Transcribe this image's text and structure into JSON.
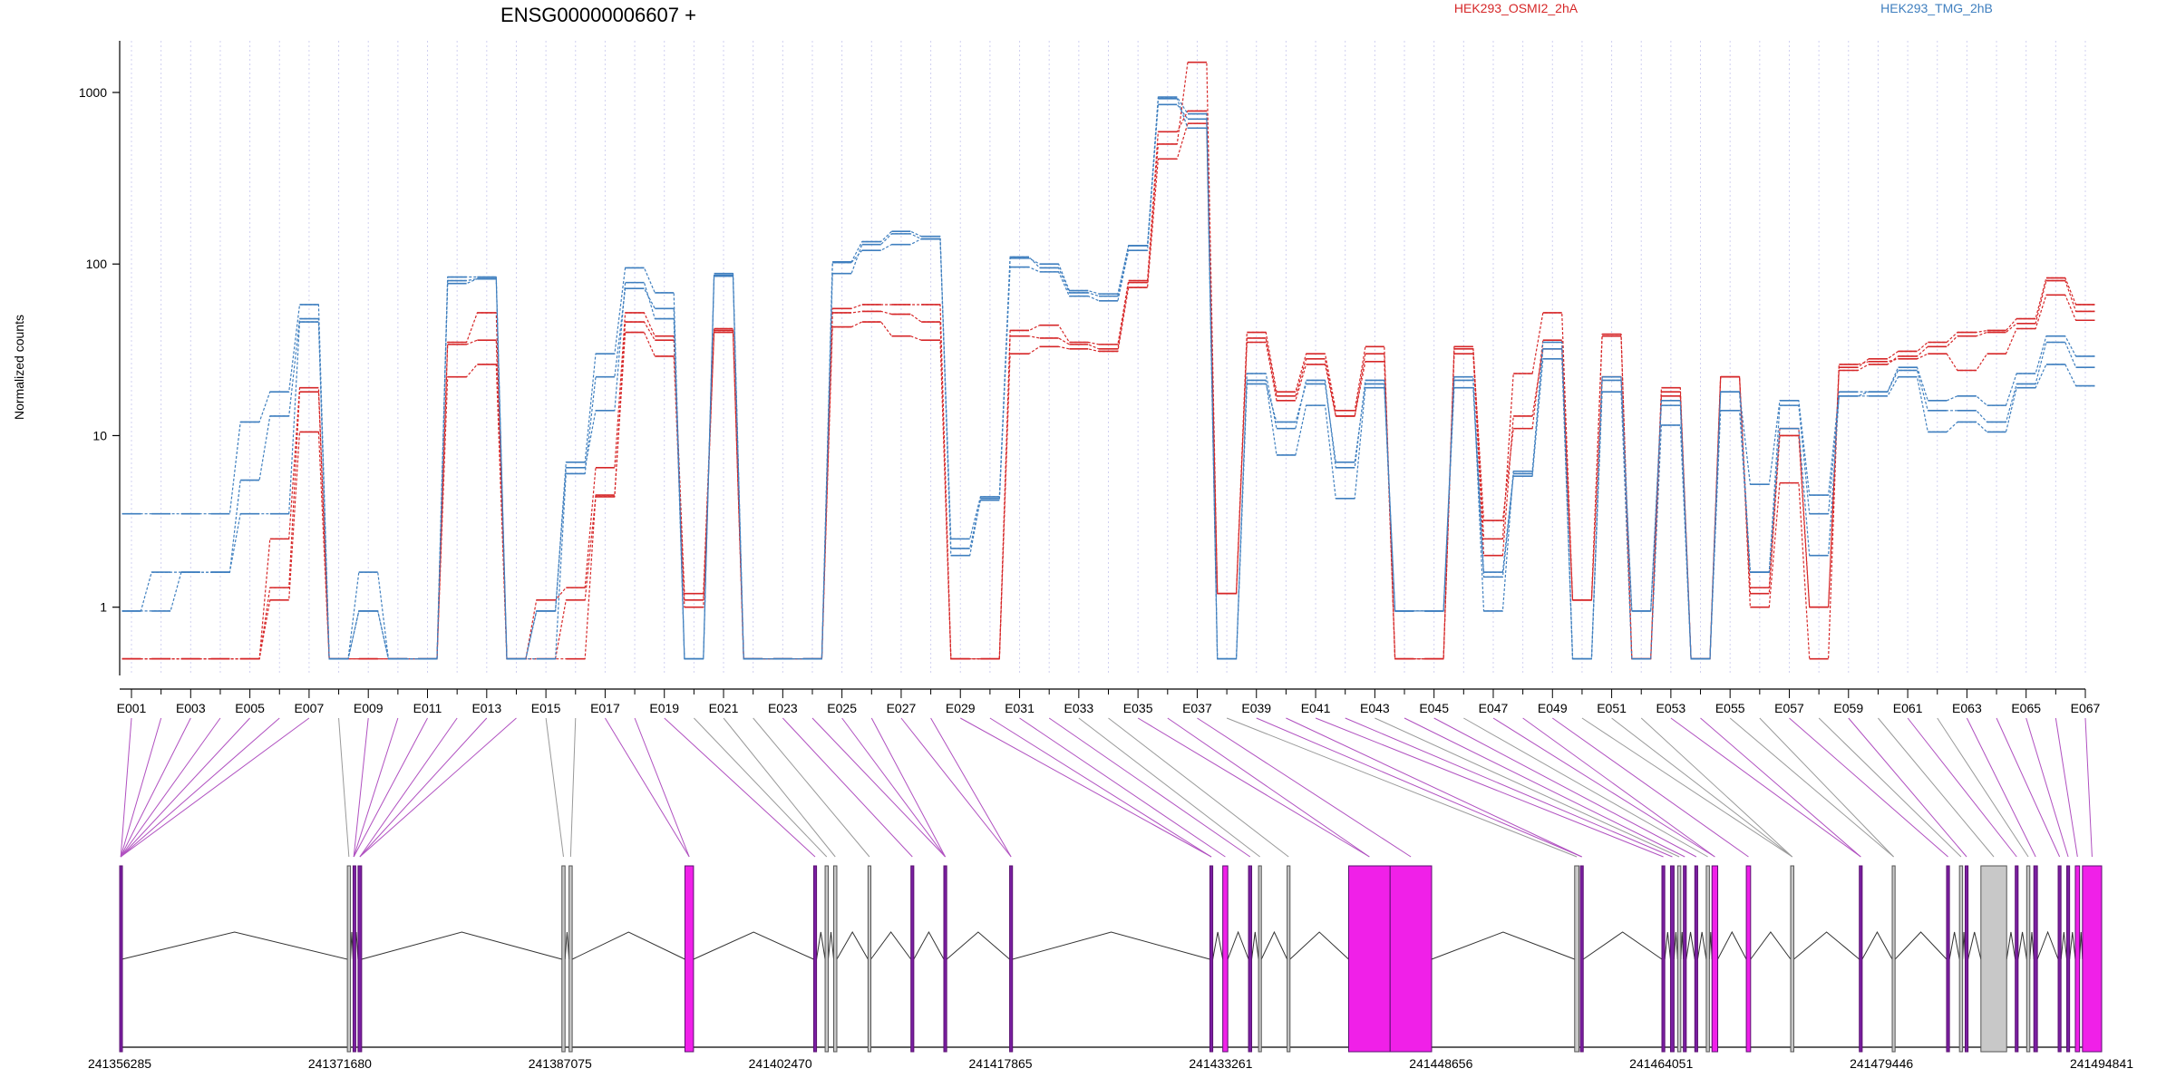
{
  "chart_data": {
    "type": "line",
    "title": "ENSG00000006607 +",
    "xlabel": "",
    "ylabel": "Normalized counts",
    "y_scale": "log",
    "ylim": [
      0.4,
      2000
    ],
    "y_ticks": [
      1,
      10,
      100,
      1000
    ],
    "y_tick_labels": [
      "1",
      "10",
      "100",
      "1000"
    ],
    "legend_placement": "top-right",
    "grid": "vertical dotted lines at each exon",
    "categories": [
      "E001",
      "E002",
      "E003",
      "E004",
      "E005",
      "E006",
      "E007",
      "E008",
      "E009",
      "E010",
      "E011",
      "E012",
      "E013",
      "E014",
      "E015",
      "E016",
      "E017",
      "E018",
      "E019",
      "E020",
      "E021",
      "E022",
      "E023",
      "E024",
      "E025",
      "E026",
      "E027",
      "E028",
      "E029",
      "E030",
      "E031",
      "E032",
      "E033",
      "E034",
      "E035",
      "E036",
      "E037",
      "E038",
      "E039",
      "E040",
      "E041",
      "E042",
      "E043",
      "E044",
      "E045",
      "E046",
      "E047",
      "E048",
      "E049",
      "E050",
      "E051",
      "E052",
      "E053",
      "E054",
      "E055",
      "E056",
      "E057",
      "E058",
      "E059",
      "E060",
      "E061",
      "E062",
      "E063",
      "E064",
      "E065",
      "E066",
      "E067"
    ],
    "category_labels": [
      "E001",
      "",
      "E003",
      "",
      "E005",
      "",
      "E007",
      "",
      "E009",
      "",
      "E011",
      "",
      "E013",
      "",
      "E015",
      "",
      "E017",
      "",
      "E019",
      "",
      "E021",
      "",
      "E023",
      "",
      "E025",
      "",
      "E027",
      "",
      "E029",
      "",
      "E031",
      "",
      "E033",
      "",
      "E035",
      "",
      "E037",
      "",
      "E039",
      "",
      "E041",
      "",
      "E043",
      "",
      "E045",
      "",
      "E047",
      "",
      "E049",
      "",
      "E051",
      "",
      "E053",
      "",
      "E055",
      "",
      "E057",
      "",
      "E059",
      "",
      "E061",
      "",
      "E063",
      "",
      "E065",
      "",
      "E067"
    ],
    "series": [
      {
        "name": "HEK293_OSMI2_2hA",
        "group": "HEK293_OSMI2_2hA",
        "values": [
          0.5,
          0.5,
          0.5,
          0.5,
          0.5,
          1.1,
          10.5,
          0.5,
          0.5,
          0.5,
          0.5,
          22,
          26,
          0.5,
          0.5,
          0.5,
          4.5,
          40,
          29,
          1.0,
          40,
          0.5,
          0.5,
          0.5,
          43,
          46,
          38,
          36,
          0.5,
          0.5,
          30,
          33,
          32,
          31,
          73,
          410,
          660,
          1.2,
          35,
          16,
          26,
          13,
          27,
          0.5,
          0.5,
          32,
          3.2,
          11,
          36,
          1.1,
          38,
          0.5,
          18,
          0.5,
          22,
          1.0,
          5.3,
          0.5,
          26,
          27,
          28,
          30,
          24,
          30,
          42,
          66,
          47
        ]
      },
      {
        "name": "HEK293_OSMI2_2hA",
        "group": "HEK293_OSMI2_2hA",
        "values": [
          0.5,
          0.5,
          0.5,
          0.5,
          0.5,
          2.5,
          19,
          0.5,
          0.5,
          0.5,
          0.5,
          35,
          52,
          0.5,
          1.1,
          1.3,
          6.5,
          52,
          38,
          1.2,
          42,
          0.5,
          0.5,
          0.5,
          55,
          58,
          58,
          58,
          0.5,
          0.5,
          41,
          44,
          35,
          34,
          80,
          590,
          780,
          1.2,
          40,
          18,
          30,
          14,
          33,
          0.5,
          0.5,
          33,
          2.5,
          23,
          52,
          1.1,
          39,
          0.5,
          19,
          0.5,
          22,
          1.3,
          11,
          1.0,
          25,
          28,
          31,
          35,
          40,
          41,
          48,
          83,
          58
        ]
      },
      {
        "name": "HEK293_OSMI2_2hA",
        "group": "HEK293_OSMI2_2hA",
        "values": [
          0.5,
          0.5,
          0.5,
          0.5,
          0.5,
          1.3,
          18,
          0.5,
          0.5,
          0.5,
          0.5,
          34,
          36,
          0.5,
          0.5,
          1.1,
          4.4,
          46,
          36,
          1.1,
          41,
          0.5,
          0.5,
          0.5,
          52,
          53,
          51,
          46,
          0.5,
          0.5,
          38,
          37,
          34,
          32,
          78,
          500,
          1500,
          1.2,
          37,
          17,
          28,
          13,
          30,
          0.5,
          0.5,
          30,
          2.0,
          13,
          32,
          1.1,
          22,
          0.5,
          17,
          0.5,
          22,
          1.2,
          10,
          1.0,
          24,
          26,
          29,
          33,
          38,
          40,
          45,
          80,
          53
        ]
      },
      {
        "name": "HEK293_TMG_2hB",
        "group": "HEK293_TMG_2hB",
        "values": [
          0.95,
          0.95,
          1.6,
          1.6,
          3.5,
          3.5,
          46,
          0.5,
          0.95,
          0.5,
          0.5,
          77,
          82,
          0.5,
          0.5,
          6.0,
          22,
          72,
          55,
          0.5,
          85,
          0.5,
          0.5,
          0.5,
          88,
          130,
          150,
          140,
          2.2,
          4.2,
          96,
          90,
          65,
          61,
          120,
          920,
          620,
          0.5,
          21,
          7.7,
          15,
          4.3,
          19,
          0.95,
          0.95,
          19,
          1.5,
          5.8,
          28,
          0.5,
          18,
          0.5,
          11.5,
          0.5,
          14,
          1.6,
          11,
          2.0,
          17,
          17,
          22,
          10.5,
          12,
          10.5,
          19,
          26,
          19.5
        ]
      },
      {
        "name": "HEK293_TMG_2hB",
        "group": "HEK293_TMG_2hB",
        "values": [
          0.95,
          1.6,
          1.6,
          1.6,
          5.5,
          13,
          48,
          0.5,
          1.6,
          0.5,
          0.5,
          80,
          82,
          0.5,
          0.95,
          7.0,
          30,
          95,
          68,
          0.5,
          88,
          0.5,
          0.5,
          0.5,
          103,
          135,
          155,
          145,
          2.0,
          4.3,
          108,
          100,
          70,
          67,
          128,
          850,
          700,
          0.5,
          23,
          11,
          21,
          6.5,
          21,
          0.95,
          0.95,
          22,
          0.95,
          6.2,
          32,
          0.5,
          22,
          0.95,
          15,
          0.5,
          18,
          5.2,
          16,
          4.5,
          18,
          18,
          25,
          16,
          17,
          15,
          23,
          38,
          29
        ]
      },
      {
        "name": "HEK293_TMG_2hB",
        "group": "HEK293_TMG_2hB",
        "values": [
          3.5,
          3.5,
          3.5,
          3.5,
          12,
          18,
          58,
          0.5,
          0.95,
          0.5,
          0.5,
          84,
          84,
          0.5,
          0.95,
          6.5,
          14,
          78,
          48,
          0.5,
          86,
          0.5,
          0.5,
          0.5,
          102,
          120,
          130,
          140,
          2.5,
          4.4,
          110,
          95,
          68,
          65,
          128,
          940,
          750,
          0.5,
          20,
          12,
          20,
          7.0,
          20,
          0.95,
          0.95,
          21,
          1.6,
          6.0,
          35,
          0.5,
          21,
          0.95,
          16,
          0.5,
          18,
          1.6,
          15,
          3.5,
          17,
          18,
          24,
          14,
          14,
          12,
          20,
          35,
          25
        ]
      }
    ],
    "legend": [
      {
        "label": "HEK293_OSMI2_2hA",
        "color": "#d62728"
      },
      {
        "label": "HEK293_TMG_2hB",
        "color": "#3f7fbf"
      }
    ],
    "gene_model": {
      "coordinate_labels": [
        "241356285",
        "241371680",
        "241387075",
        "241402470",
        "241417865",
        "241433261",
        "241448656",
        "241464051",
        "241479446",
        "241494841"
      ],
      "coordinate_range": [
        241356285,
        241494841
      ],
      "exons": [
        {
          "start": 241356285,
          "end": 241356435,
          "color": "purple",
          "exon": "E001-E007"
        },
        {
          "start": 241372200,
          "end": 241372420,
          "color": "gray",
          "exon": "E008"
        },
        {
          "start": 241372600,
          "end": 241372700,
          "color": "purple",
          "exon": "E009-E011"
        },
        {
          "start": 241372950,
          "end": 241373200,
          "color": "purple",
          "exon": "E012-E014"
        },
        {
          "start": 241387200,
          "end": 241387420,
          "color": "gray",
          "exon": "E015"
        },
        {
          "start": 241387700,
          "end": 241387920,
          "color": "gray",
          "exon": "E016"
        },
        {
          "start": 241395800,
          "end": 241396400,
          "color": "magenta",
          "exon": "E017-E018"
        },
        {
          "start": 241404800,
          "end": 241405000,
          "color": "purple",
          "exon": "E019"
        },
        {
          "start": 241405600,
          "end": 241405820,
          "color": "gray",
          "exon": "E020"
        },
        {
          "start": 241406200,
          "end": 241406420,
          "color": "gray",
          "exon": "E021"
        },
        {
          "start": 241408600,
          "end": 241408800,
          "color": "gray",
          "exon": "E022"
        },
        {
          "start": 241411600,
          "end": 241411800,
          "color": "purple",
          "exon": "E023"
        },
        {
          "start": 241413900,
          "end": 241414100,
          "color": "purple",
          "exon": "E024-E026"
        },
        {
          "start": 241418500,
          "end": 241418700,
          "color": "purple",
          "exon": "E027-E028"
        },
        {
          "start": 241432500,
          "end": 241432700,
          "color": "purple",
          "exon": "E029-E030"
        },
        {
          "start": 241433400,
          "end": 241433750,
          "color": "magenta",
          "exon": "E031"
        },
        {
          "start": 241435200,
          "end": 241435420,
          "color": "purple",
          "exon": "E032"
        },
        {
          "start": 241435900,
          "end": 241436100,
          "color": "gray",
          "exon": "E033"
        },
        {
          "start": 241437900,
          "end": 241438100,
          "color": "gray",
          "exon": "E034"
        },
        {
          "start": 241442200,
          "end": 241445100,
          "color": "magenta",
          "exon": "E035-E036"
        },
        {
          "start": 241445100,
          "end": 241448000,
          "color": "magenta",
          "exon": "E037"
        },
        {
          "start": 241458000,
          "end": 241458300,
          "color": "gray",
          "exon": "E038"
        },
        {
          "start": 241458400,
          "end": 241458600,
          "color": "purple",
          "exon": "E039-E040"
        },
        {
          "start": 241464100,
          "end": 241464300,
          "color": "purple",
          "exon": "E041"
        },
        {
          "start": 241464700,
          "end": 241464950,
          "color": "purple",
          "exon": "E042"
        },
        {
          "start": 241465200,
          "end": 241465420,
          "color": "gray",
          "exon": "E043"
        },
        {
          "start": 241465600,
          "end": 241465800,
          "color": "purple",
          "exon": "E044"
        },
        {
          "start": 241466400,
          "end": 241466600,
          "color": "purple",
          "exon": "E045"
        },
        {
          "start": 241467200,
          "end": 241467420,
          "color": "gray",
          "exon": "E046"
        },
        {
          "start": 241467600,
          "end": 241468000,
          "color": "magenta",
          "exon": "E047-E048"
        },
        {
          "start": 241470000,
          "end": 241470300,
          "color": "magenta",
          "exon": "E049"
        },
        {
          "start": 241473100,
          "end": 241473320,
          "color": "gray",
          "exon": "E050-E052"
        },
        {
          "start": 241477900,
          "end": 241478100,
          "color": "purple",
          "exon": "E053-E054"
        },
        {
          "start": 241480200,
          "end": 241480400,
          "color": "gray",
          "exon": "E055-E056"
        },
        {
          "start": 241484000,
          "end": 241484200,
          "color": "purple",
          "exon": "E057"
        },
        {
          "start": 241484900,
          "end": 241485120,
          "color": "gray",
          "exon": "E058"
        },
        {
          "start": 241485300,
          "end": 241485500,
          "color": "purple",
          "exon": "E059"
        },
        {
          "start": 241486400,
          "end": 241488200,
          "color": "gray",
          "exon": "E060"
        },
        {
          "start": 241488800,
          "end": 241489000,
          "color": "purple",
          "exon": "E061"
        },
        {
          "start": 241489600,
          "end": 241489820,
          "color": "gray",
          "exon": "E062"
        },
        {
          "start": 241490100,
          "end": 241490350,
          "color": "purple",
          "exon": "E063"
        },
        {
          "start": 241491800,
          "end": 241492000,
          "color": "purple",
          "exon": "E064"
        },
        {
          "start": 241492400,
          "end": 241492600,
          "color": "purple",
          "exon": "E065"
        },
        {
          "start": 241493000,
          "end": 241493300,
          "color": "magenta",
          "exon": "E066"
        },
        {
          "start": 241493500,
          "end": 241494841,
          "color": "magenta",
          "exon": "E067"
        }
      ]
    }
  },
  "colors": {
    "group_a": "#d62728",
    "group_b": "#3f7fbf",
    "exon_magenta": "#f020e8",
    "exon_purple": "#7a1fa2",
    "exon_gray": "#c8c8c8",
    "connector_purple": "#b050c0",
    "connector_gray": "#999999",
    "grid": "#d0d0f0"
  }
}
